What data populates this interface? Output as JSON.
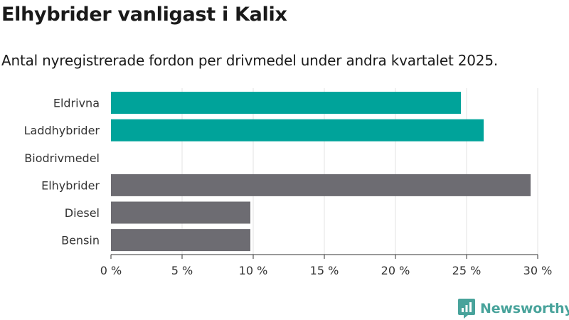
{
  "header": {
    "title": "Elhybrider vanligast i Kalix",
    "subtitle": "Antal nyregistrerade fordon per drivmedel under andra kvartalet 2025."
  },
  "brand": {
    "name": "Newsworthy",
    "icon": "newsworthy-logo-icon",
    "color": "#48a39b"
  },
  "chart_data": {
    "type": "bar",
    "orientation": "horizontal",
    "categories": [
      "Eldrivna",
      "Laddhybrider",
      "Biodrivmedel",
      "Elhybrider",
      "Diesel",
      "Bensin"
    ],
    "values": [
      24.6,
      26.2,
      0,
      29.5,
      9.8,
      9.8
    ],
    "colors": [
      "#00a39a",
      "#00a39a",
      "#00a39a",
      "#6d6c72",
      "#6d6c72",
      "#6d6c72"
    ],
    "xlim": [
      0,
      30
    ],
    "xticks": [
      0,
      5,
      10,
      15,
      20,
      25,
      30
    ],
    "xtick_labels": [
      "0 %",
      "5 %",
      "10 %",
      "15 %",
      "20 %",
      "25 %",
      "30 %"
    ],
    "grid": true,
    "title": "Elhybrider vanligast i Kalix",
    "subtitle": "Antal nyregistrerade fordon per drivmedel under andra kvartalet 2025.",
    "xlabel": "",
    "ylabel": ""
  }
}
